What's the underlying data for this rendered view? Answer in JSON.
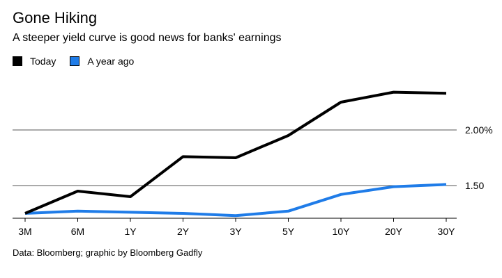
{
  "chart_data": {
    "type": "line",
    "title": "Gone Hiking",
    "subtitle": "A steeper yield curve is good news for banks' earnings",
    "categories": [
      "3M",
      "6M",
      "1Y",
      "2Y",
      "3Y",
      "5Y",
      "10Y",
      "20Y",
      "30Y"
    ],
    "series": [
      {
        "name": "Today",
        "color": "#000000",
        "values": [
          1.25,
          1.45,
          1.4,
          1.76,
          1.75,
          1.95,
          2.25,
          2.34,
          2.33
        ]
      },
      {
        "name": "A year ago",
        "color": "#1f7ce8",
        "values": [
          1.25,
          1.27,
          1.26,
          1.25,
          1.23,
          1.27,
          1.42,
          1.49,
          1.51
        ]
      }
    ],
    "y_ticks": [
      {
        "value": 2.0,
        "label": "2.00%"
      },
      {
        "value": 1.5,
        "label": "1.50"
      }
    ],
    "ylim": [
      1.22,
      2.5
    ],
    "xlabel": "",
    "ylabel": "",
    "grid": "horizontal",
    "legend_position": "top-left",
    "source": "Data: Bloomberg; graphic by Bloomberg Gadfly"
  }
}
